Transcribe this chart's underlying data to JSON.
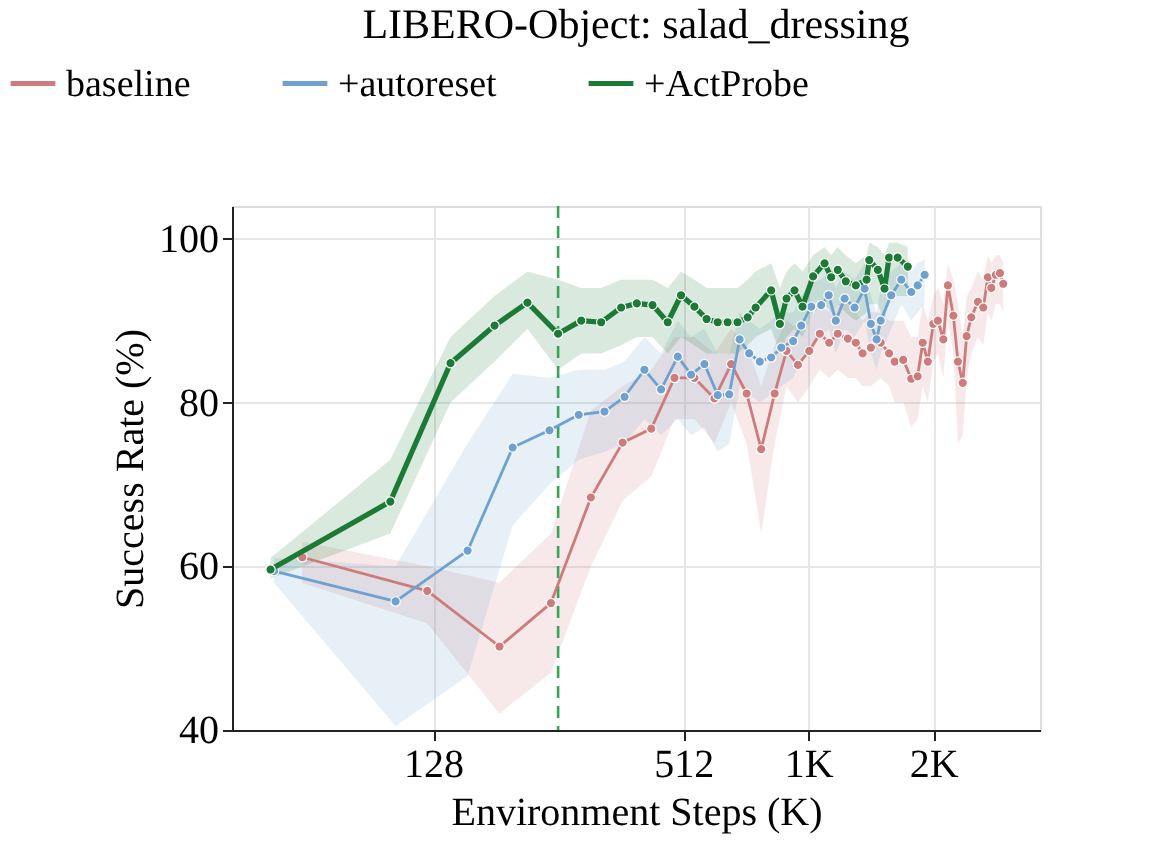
{
  "chart_data": {
    "type": "line",
    "title": "LIBERO-Object: salad_dressing",
    "xlabel": "Environment Steps (K)",
    "ylabel": "Success Rate (%)",
    "log": "x",
    "xlim": [
      42,
      3700
    ],
    "xticks": [
      128,
      512,
      {
        "value": 1024,
        "label": "1K"
      },
      {
        "value": 2048,
        "label": "2K"
      }
    ],
    "ylim": [
      40,
      104
    ],
    "yticks": [
      40,
      60,
      80,
      100
    ],
    "grid": true,
    "legend": "top",
    "marker": "circle",
    "line_style": "solid",
    "ref_lines": [
      {
        "axis": "x",
        "value": 256,
        "label": null,
        "color": "#3aa35a",
        "line_style": "dashed"
      }
    ],
    "series": [
      {
        "name": "baseline",
        "color": "#cd7b7b",
        "x": [
          62,
          124,
          185,
          246,
          307,
          366,
          429,
          488,
          545,
          609,
          668,
          728,
          789,
          850,
          908,
          967,
          1030,
          1092,
          1150,
          1206,
          1276,
          1333,
          1384,
          1449,
          1530,
          1603,
          1653,
          1734,
          1813,
          1878,
          1931,
          1987,
          2048,
          2101,
          2165,
          2221,
          2289,
          2348,
          2411,
          2464,
          2528,
          2623,
          2702,
          2772,
          2825,
          2897,
          2963,
          3018
        ],
        "values": [
          61.1,
          57.0,
          50.2,
          55.5,
          68.4,
          75.1,
          76.8,
          83.0,
          83.0,
          80.5,
          84.7,
          81.1,
          74.3,
          81.1,
          86.3,
          84.6,
          86.3,
          88.4,
          87.3,
          88.4,
          87.8,
          87.3,
          86.0,
          86.7,
          87.3,
          86.0,
          85.0,
          85.2,
          82.9,
          83.2,
          87.3,
          85.0,
          89.6,
          90.0,
          87.7,
          94.3,
          90.6,
          85.0,
          82.4,
          88.1,
          90.4,
          92.3,
          91.6,
          95.3,
          94.0,
          95.6,
          95.8,
          94.5
        ],
        "lower": [
          58,
          53,
          42,
          47,
          60,
          68,
          71,
          78,
          78,
          75,
          80,
          75,
          64,
          75,
          82,
          80,
          82,
          84,
          83,
          84,
          83,
          83,
          82,
          82,
          83,
          82,
          80,
          80,
          77,
          78,
          82,
          80,
          85,
          86,
          83,
          90,
          86,
          75,
          76,
          83,
          86,
          88,
          87,
          91,
          90,
          92,
          92,
          91
        ],
        "upper": [
          63,
          60,
          58,
          64,
          79,
          82,
          84,
          88,
          88,
          86,
          89,
          87,
          82,
          87,
          90,
          89,
          90,
          92,
          91,
          92,
          92,
          91,
          90,
          91,
          91,
          90,
          90,
          90,
          88,
          88,
          92,
          90,
          93,
          94,
          92,
          97,
          95,
          92,
          88,
          93,
          94,
          96,
          95,
          98,
          97,
          98,
          98,
          97
        ]
      },
      {
        "name": "+autoreset",
        "color": "#6fa1d0",
        "x": [
          53,
          104,
          155,
          199,
          244,
          287,
          331,
          370,
          413,
          453,
          497,
          535,
          576,
          620,
          661,
          700,
          738,
          783,
          834,
          882,
          942,
          985,
          1041,
          1100,
          1147,
          1193,
          1253,
          1324,
          1400,
          1449,
          1496,
          1530,
          1622,
          1715,
          1813,
          1878,
          1952
        ],
        "values": [
          59.4,
          55.7,
          61.9,
          74.5,
          76.6,
          78.5,
          78.9,
          80.7,
          84.0,
          81.6,
          85.6,
          83.4,
          84.7,
          80.9,
          81.0,
          87.7,
          86.0,
          85.0,
          85.5,
          86.7,
          87.5,
          89.4,
          91.7,
          91.9,
          93.1,
          90.0,
          92.7,
          91.6,
          93.9,
          89.6,
          87.7,
          90.0,
          93.1,
          95.0,
          93.5,
          94.3,
          95.6
        ],
        "lower": [
          58,
          40.5,
          46.6,
          65,
          70,
          73,
          74,
          75,
          78,
          76,
          78,
          76,
          77,
          74,
          75,
          82,
          81,
          80,
          81,
          82,
          83,
          85,
          87,
          88,
          89,
          86,
          89,
          88,
          90,
          86,
          84,
          86,
          89,
          92,
          90,
          91,
          92
        ],
        "upper": [
          61,
          60,
          75,
          83.5,
          83,
          84,
          84,
          85,
          88,
          86,
          90,
          88,
          89,
          86,
          86,
          91,
          90,
          89,
          90,
          91,
          91,
          93,
          95,
          95,
          96,
          94,
          96,
          95,
          97,
          93,
          91,
          94,
          96,
          97,
          96,
          97,
          97.5
        ]
      },
      {
        "name": "+ActProbe",
        "color": "#1b7a36",
        "x": [
          52,
          101,
          141,
          180,
          216,
          256,
          291,
          325,
          363,
          396,
          432,
          470,
          506,
          545,
          583,
          620,
          655,
          692,
          732,
          765,
          834,
          875,
          908,
          949,
          992,
          1052,
          1121,
          1163,
          1206,
          1261,
          1333,
          1415,
          1436,
          1506,
          1563,
          1603,
          1681,
          1778
        ],
        "values": [
          59.6,
          67.9,
          84.8,
          89.4,
          92.2,
          88.4,
          90.0,
          89.8,
          91.6,
          92.1,
          91.9,
          89.8,
          93.1,
          91.7,
          90.2,
          89.8,
          89.8,
          89.8,
          90.4,
          91.6,
          93.7,
          89.6,
          92.7,
          93.7,
          91.7,
          95.4,
          97.0,
          95.3,
          96.2,
          94.8,
          94.3,
          95.0,
          97.4,
          96.2,
          93.9,
          97.7,
          97.7,
          96.6
        ],
        "lower": [
          58.5,
          64,
          80,
          85,
          89,
          84,
          86,
          86,
          87,
          88,
          88,
          86,
          88,
          87,
          86,
          86,
          86,
          86,
          87,
          88,
          89,
          86,
          88,
          89,
          88,
          91,
          92,
          91,
          92,
          91,
          90,
          91,
          92,
          92,
          90,
          93,
          93,
          93
        ],
        "upper": [
          61,
          73,
          88,
          93,
          96,
          95,
          94,
          94,
          95,
          95,
          95,
          94,
          96,
          95,
          94,
          94,
          94,
          94,
          95,
          96,
          97,
          94,
          96,
          97,
          96,
          98,
          99,
          98,
          99,
          98,
          97,
          98,
          99.5,
          99,
          98,
          99.5,
          99.5,
          99
        ]
      }
    ]
  }
}
